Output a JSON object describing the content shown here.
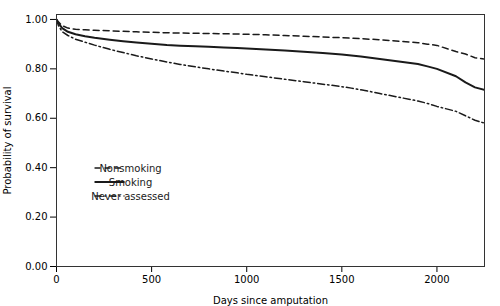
{
  "chart_data": {
    "type": "line",
    "xlabel": "Days since amputation",
    "ylabel": "Probability of survival",
    "xlim": [
      0,
      2250
    ],
    "ylim": [
      0.0,
      1.02
    ],
    "xticks": [
      0,
      500,
      1000,
      1500,
      2000
    ],
    "yticks": [
      {
        "value": 0.0,
        "label": "0.00"
      },
      {
        "value": 0.2,
        "label": "0.20"
      },
      {
        "value": 0.4,
        "label": "0.40"
      },
      {
        "value": 0.6,
        "label": "0.60"
      },
      {
        "value": 0.8,
        "label": "0.80"
      },
      {
        "value": 1.0,
        "label": "1.00"
      }
    ],
    "grid": false,
    "legend": "lower left",
    "series": [
      {
        "name": "Nonsmoking",
        "color": "#1a1a1a",
        "line_style": "dashed",
        "x": [
          0,
          10,
          30,
          60,
          100,
          150,
          200,
          280,
          350,
          420,
          500,
          580,
          650,
          730,
          800,
          880,
          950,
          1000,
          1050,
          1100,
          1200,
          1300,
          1400,
          1500,
          1600,
          1650,
          1700,
          1800,
          1900,
          1950,
          2000,
          2100,
          2150,
          2200,
          2250
        ],
        "values": [
          1.0,
          0.99,
          0.975,
          0.965,
          0.96,
          0.958,
          0.956,
          0.954,
          0.952,
          0.95,
          0.948,
          0.946,
          0.945,
          0.944,
          0.943,
          0.942,
          0.941,
          0.94,
          0.939,
          0.938,
          0.935,
          0.932,
          0.929,
          0.926,
          0.922,
          0.92,
          0.918,
          0.912,
          0.906,
          0.9,
          0.895,
          0.87,
          0.86,
          0.845,
          0.84
        ]
      },
      {
        "name": "Smoking",
        "color": "#1a1a1a",
        "line_style": "solid",
        "x": [
          0,
          10,
          30,
          60,
          100,
          150,
          200,
          280,
          350,
          420,
          500,
          580,
          650,
          730,
          800,
          880,
          950,
          1000,
          1050,
          1100,
          1200,
          1300,
          1400,
          1500,
          1550,
          1600,
          1650,
          1700,
          1800,
          1900,
          1950,
          2000,
          2100,
          2150,
          2200,
          2250
        ],
        "values": [
          1.0,
          0.985,
          0.965,
          0.95,
          0.94,
          0.932,
          0.926,
          0.918,
          0.912,
          0.907,
          0.902,
          0.897,
          0.894,
          0.891,
          0.889,
          0.886,
          0.884,
          0.882,
          0.88,
          0.878,
          0.874,
          0.869,
          0.864,
          0.858,
          0.854,
          0.85,
          0.845,
          0.84,
          0.83,
          0.82,
          0.81,
          0.8,
          0.77,
          0.745,
          0.725,
          0.715
        ]
      },
      {
        "name": "Never assessed",
        "color": "#1a1a1a",
        "line_style": "dashdot",
        "x": [
          0,
          10,
          30,
          60,
          100,
          150,
          200,
          280,
          350,
          420,
          500,
          580,
          650,
          730,
          800,
          880,
          950,
          1000,
          1050,
          1100,
          1200,
          1300,
          1400,
          1500,
          1550,
          1600,
          1650,
          1700,
          1800,
          1900,
          1950,
          2000,
          2100,
          2150,
          2200,
          2250
        ],
        "values": [
          1.0,
          0.975,
          0.95,
          0.935,
          0.92,
          0.908,
          0.896,
          0.879,
          0.866,
          0.853,
          0.84,
          0.828,
          0.818,
          0.808,
          0.8,
          0.791,
          0.784,
          0.778,
          0.773,
          0.768,
          0.758,
          0.748,
          0.738,
          0.728,
          0.722,
          0.715,
          0.708,
          0.7,
          0.685,
          0.67,
          0.66,
          0.648,
          0.628,
          0.61,
          0.592,
          0.58
        ]
      }
    ]
  }
}
